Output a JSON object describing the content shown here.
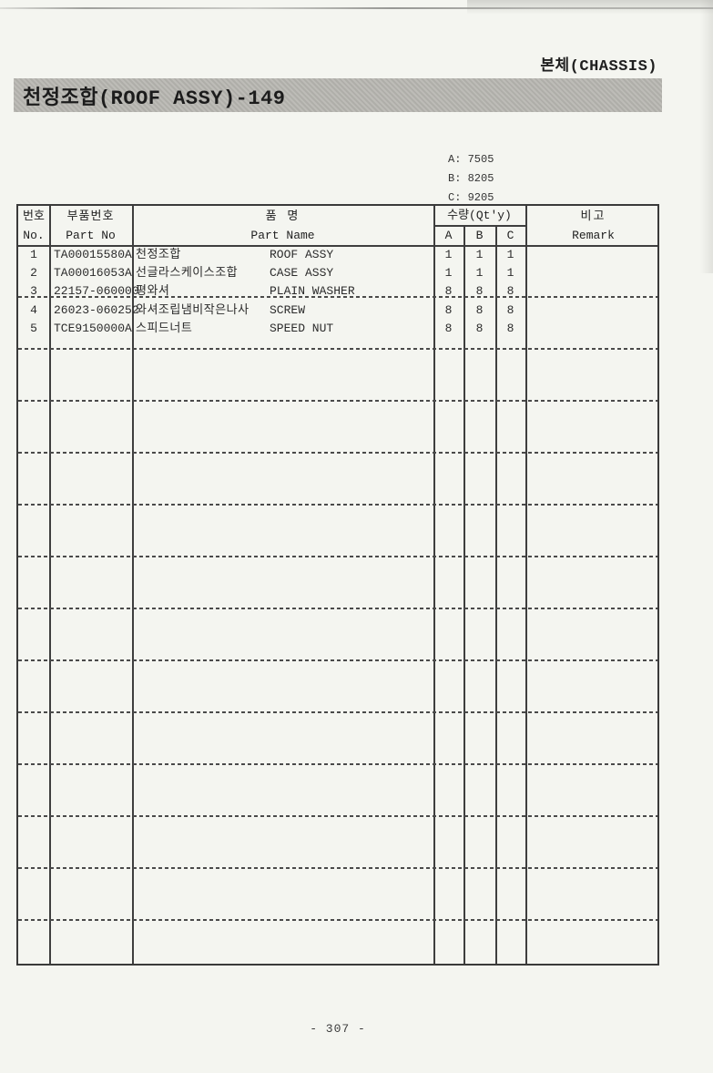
{
  "document": {
    "corner_label": "본체(CHASSIS)",
    "title": "천정조합(ROOF ASSY)-149",
    "page_number": "- 307 -"
  },
  "legend": {
    "a": "A: 7505",
    "b": "B: 8205",
    "c": "C: 9205"
  },
  "table": {
    "header": {
      "no_kr": "번호",
      "no_en": "No.",
      "part_no_kr": "부품번호",
      "part_no_en": "Part No",
      "name_kr": "품 명",
      "name_en": "Part Name",
      "qty": "수량(Qt'y)",
      "qty_a": "A",
      "qty_b": "B",
      "qty_c": "C",
      "remark_kr": "비고",
      "remark_en": "Remark"
    },
    "rows": [
      {
        "no": "1",
        "part_no": "TA00015580A",
        "name_kr": "천정조합",
        "name_en": "ROOF ASSY",
        "a": "1",
        "b": "1",
        "c": "1",
        "remark": ""
      },
      {
        "no": "2",
        "part_no": "TA00016053A",
        "name_kr": "선글라스케이스조합",
        "name_en": "CASE ASSY",
        "a": "1",
        "b": "1",
        "c": "1",
        "remark": ""
      },
      {
        "no": "3",
        "part_no": "22157-060000",
        "name_kr": "평와셔",
        "name_en": "PLAIN WASHER",
        "a": "8",
        "b": "8",
        "c": "8",
        "remark": ""
      },
      {
        "no": "4",
        "part_no": "26023-060252",
        "name_kr": "와셔조립냄비작은나사",
        "name_en": "SCREW",
        "a": "8",
        "b": "8",
        "c": "8",
        "remark": ""
      },
      {
        "no": "5",
        "part_no": "TCE9150000A",
        "name_kr": "스피드너트",
        "name_en": "SPEED NUT",
        "a": "8",
        "b": "8",
        "c": "8",
        "remark": ""
      }
    ]
  },
  "colors": {
    "page_bg": "#f4f5f0",
    "title_bar_bg": "#b8b7b2",
    "line": "#3e3e3e",
    "text": "#2b2b2b"
  }
}
